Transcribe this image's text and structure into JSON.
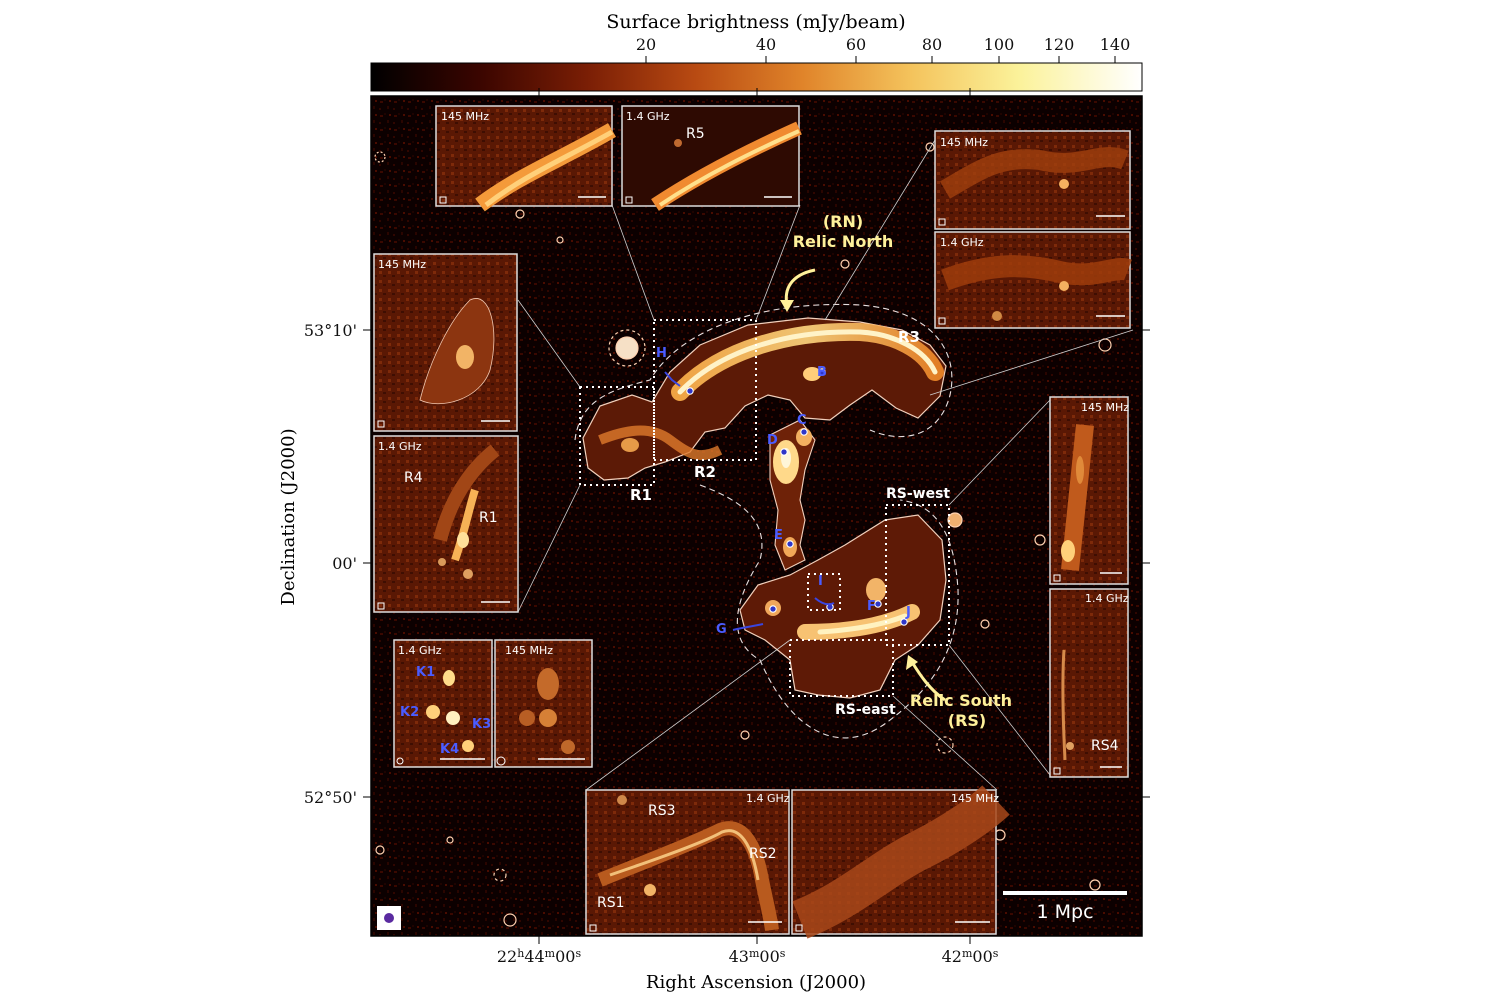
{
  "colorbar": {
    "title": "Surface brightness (mJy/beam)",
    "ticks": [
      "20",
      "40",
      "60",
      "80",
      "100",
      "120",
      "140"
    ],
    "colors": [
      "#000000",
      "#3a0500",
      "#7a1e05",
      "#b84a12",
      "#e0842a",
      "#f4c35c",
      "#fbf29a",
      "#ffffff"
    ]
  },
  "axes": {
    "xlabel": "Right Ascension (J2000)",
    "ylabel": "Declination (J2000)",
    "xticks": [
      {
        "pre": "22",
        "s1": "h",
        "mid": "44",
        "s2": "m",
        "post": "00",
        "s3": "s"
      },
      {
        "pre": "",
        "s1": "",
        "mid": "43",
        "s2": "m",
        "post": "00",
        "s3": "s"
      },
      {
        "pre": "",
        "s1": "",
        "mid": "42",
        "s2": "m",
        "post": "00",
        "s3": "s"
      }
    ],
    "yticks": [
      "53°10'",
      "00'",
      "52°50'"
    ]
  },
  "labels": {
    "rn_acronym": "(RN)",
    "rn_name": "Relic North",
    "rs_name": "Relic South",
    "rs_acronym": "(RS)",
    "r1": "R1",
    "r2": "R2",
    "r3": "R3",
    "rs_west": "RS-west",
    "rs_east": "RS-east",
    "sources": [
      "H",
      "B",
      "C",
      "D",
      "E",
      "F",
      "G",
      "I",
      "J"
    ]
  },
  "insets": {
    "top_left": {
      "freq": "145 MHz"
    },
    "top_mid": {
      "freq": "1.4 GHz",
      "region": "R5"
    },
    "top_right_upper": {
      "freq": "145 MHz"
    },
    "top_right_lower": {
      "freq": "1.4 GHz"
    },
    "left_upper": {
      "freq": "145 MHz"
    },
    "left_lower": {
      "freq": "1.4 GHz",
      "r4": "R4",
      "r1": "R1"
    },
    "k_left": {
      "freq": "1.4 GHz",
      "k": [
        "K1",
        "K2",
        "K3",
        "K4"
      ]
    },
    "k_right": {
      "freq": "145 MHz"
    },
    "right_upper": {
      "freq": "145 MHz"
    },
    "right_lower": {
      "freq": "1.4 GHz",
      "region": "RS4"
    },
    "bottom_left": {
      "freq": "1.4 GHz",
      "rs3": "RS3",
      "rs2": "RS2",
      "rs1": "RS1"
    },
    "bottom_right": {
      "freq": "145 MHz"
    }
  },
  "scalebar": {
    "label": "1 Mpc"
  }
}
